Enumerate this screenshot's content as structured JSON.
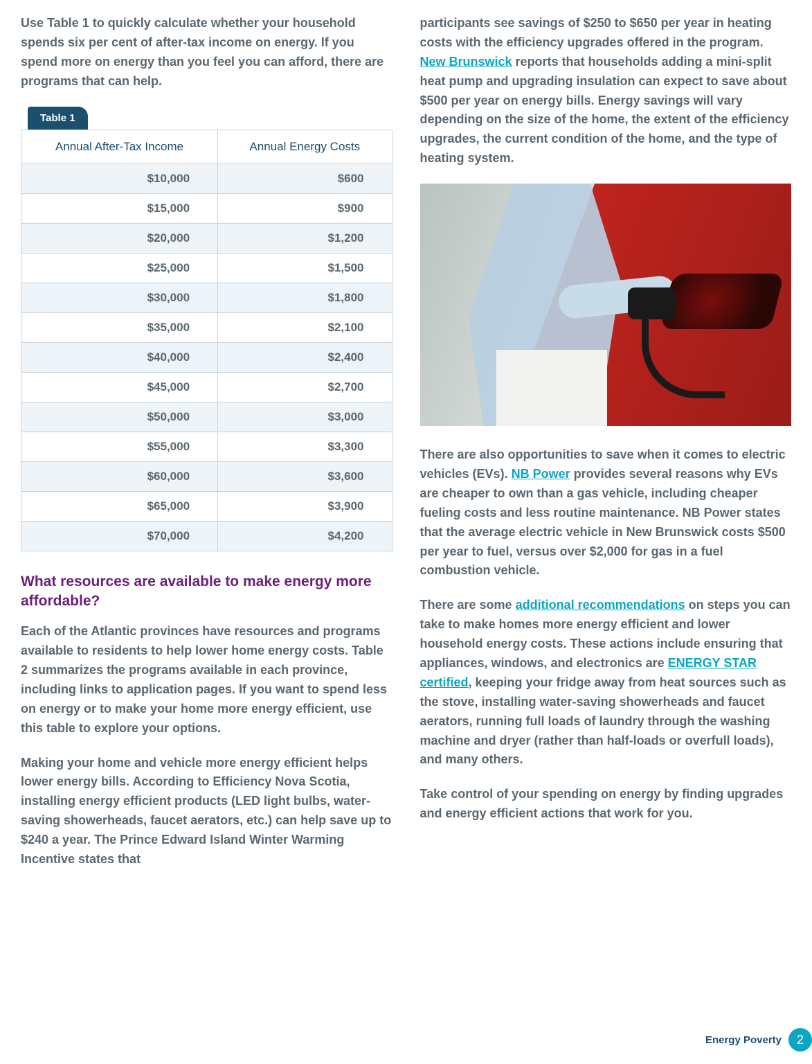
{
  "left": {
    "intro": "Use Table 1 to quickly calculate whether your household spends six per cent of after-tax income on energy. If you spend more on energy than you feel you can afford, there are programs that can help.",
    "table": {
      "tab_label": "Table 1",
      "columns": [
        "Annual After-Tax Income",
        "Annual Energy Costs"
      ],
      "rows": [
        [
          "$10,000",
          "$600"
        ],
        [
          "$15,000",
          "$900"
        ],
        [
          "$20,000",
          "$1,200"
        ],
        [
          "$25,000",
          "$1,500"
        ],
        [
          "$30,000",
          "$1,800"
        ],
        [
          "$35,000",
          "$2,100"
        ],
        [
          "$40,000",
          "$2,400"
        ],
        [
          "$45,000",
          "$2,700"
        ],
        [
          "$50,000",
          "$3,000"
        ],
        [
          "$55,000",
          "$3,300"
        ],
        [
          "$60,000",
          "$3,600"
        ],
        [
          "$65,000",
          "$3,900"
        ],
        [
          "$70,000",
          "$4,200"
        ]
      ],
      "header_color": "#1a4f6e",
      "row_stripe_color": "#eef4f7",
      "border_color": "#c9d3d9"
    },
    "heading": "What resources are available to make energy more affordable?",
    "heading_color": "#6b1f7a",
    "para2": "Each of the Atlantic provinces have resources and programs available to residents to help lower home energy costs. Table 2 summarizes the programs available in each province, including links to application pages. If you want to spend less on energy or to make your home more energy efficient, use this table to explore your options.",
    "para3": "Making your home and vehicle more energy efficient helps lower energy bills. According to Efficiency Nova Scotia, installing energy efficient products (LED light bulbs, water-saving showerheads, faucet aerators, etc.) can help save up to $240 a year. The Prince Edward Island Winter Warming Incentive states that"
  },
  "right": {
    "para1_a": "participants see savings of $250 to $650 per year in heating costs with the efficiency upgrades offered in the program. ",
    "link1": "New Brunswick",
    "para1_b": " reports that households adding a mini-split heat pump and upgrading insulation can expect to save about $500 per year on energy bills. Energy savings will vary depending on the size of the home, the extent of the efficiency upgrades, the current condition of the home, and the type of heating system.",
    "image_alt": "Person in light-blue shirt plugging a charging cable into a red electric vehicle",
    "para2_a": "There are also opportunities to save when it comes to electric vehicles (EVs). ",
    "link2": "NB Power",
    "para2_b": " provides several reasons why EVs are cheaper to own than a gas vehicle, including cheaper fueling costs and less routine maintenance. NB Power states that the average electric vehicle in New Brunswick costs $500 per year to fuel, versus over $2,000 for gas in a fuel combustion vehicle.",
    "para3_a": "There are some ",
    "link3": "additional recommendations",
    "para3_b": " on steps you can take to make homes more energy efficient and lower household energy costs. These actions include ensuring that appliances, windows, and electronics are ",
    "link4": "ENERGY STAR certified",
    "para3_c": ", keeping your fridge away from heat sources such as the stove, installing water-saving showerheads and faucet aerators, running full loads of laundry through the washing machine and dryer (rather than half-loads or overfull loads), and many others.",
    "para4": "Take control of your spending on energy by finding upgrades and energy efficient actions that work for you."
  },
  "footer": {
    "label": "Energy Poverty",
    "page": "2",
    "badge_color": "#0aa6c2"
  },
  "colors": {
    "body_text": "#5a6770",
    "link": "#0aa6c2",
    "background": "#ffffff"
  }
}
